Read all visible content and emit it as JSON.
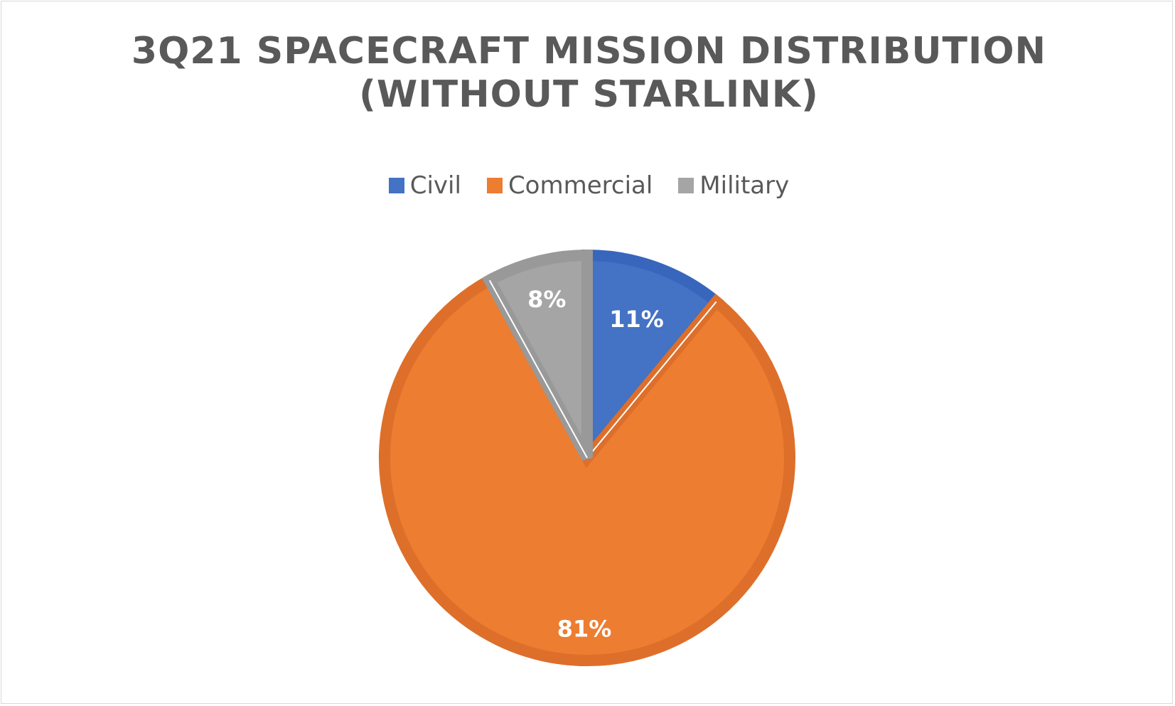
{
  "chart_data": {
    "type": "pie",
    "title": "3Q21 SPACECRAFT MISSION DISTRIBUTION\n(WITHOUT STARLINK)",
    "categories": [
      "Civil",
      "Commercial",
      "Military"
    ],
    "values": [
      11,
      81,
      8
    ],
    "data_labels": [
      "11%",
      "81%",
      "8%"
    ],
    "colors": [
      "#4472c4",
      "#ed7d31",
      "#a5a5a5"
    ],
    "border_colors": [
      "#3866bd",
      "#dd6f2b",
      "#999999"
    ],
    "legend_position": "top",
    "start_angle": "12 o'clock",
    "direction": "clockwise"
  }
}
